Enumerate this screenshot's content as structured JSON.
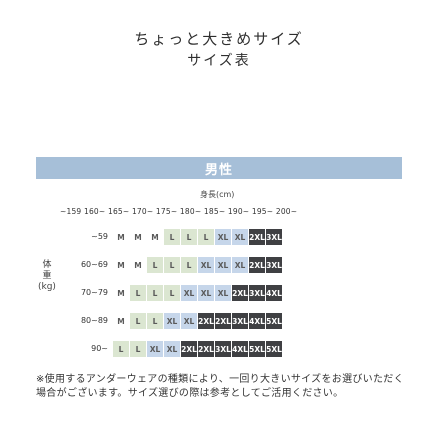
{
  "header": {
    "line1": "ちょっと大きめサイズ",
    "line2": "サイズ表"
  },
  "section": {
    "label": "男性"
  },
  "height_unit": "身長(cm)",
  "height_scale": "~159 160~ 165~ 170~ 175~ 180~ 185~ 190~ 195~ 200~",
  "weight_label": [
    "体",
    "重",
    "(kg)"
  ],
  "rows": [
    {
      "label": "~59",
      "cells": [
        "M",
        "M",
        "M",
        "L",
        "L",
        "L",
        "XL",
        "XL",
        "2XL",
        "3XL"
      ]
    },
    {
      "label": "60~69",
      "cells": [
        "M",
        "M",
        "L",
        "L",
        "L",
        "XL",
        "XL",
        "XL",
        "2XL",
        "3XL"
      ]
    },
    {
      "label": "70~79",
      "cells": [
        "M",
        "L",
        "L",
        "L",
        "XL",
        "XL",
        "XL",
        "2XL",
        "3XL",
        "4XL"
      ]
    },
    {
      "label": "80~89",
      "cells": [
        "M",
        "L",
        "L",
        "XL",
        "XL",
        "2XL",
        "2XL",
        "3XL",
        "4XL",
        "5XL"
      ]
    },
    {
      "label": "90~",
      "cells": [
        "L",
        "L",
        "XL",
        "XL",
        "2XL",
        "2XL",
        "3XL",
        "4XL",
        "5XL",
        "5XL"
      ]
    }
  ],
  "note": "※使用するアンダーウェアの種類により、一回り大きいサイズをお選びいただく場合がございます。サイズ選びの際は参考としてご活用ください。"
}
